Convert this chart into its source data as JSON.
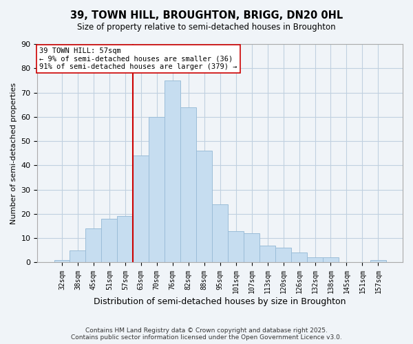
{
  "title": "39, TOWN HILL, BROUGHTON, BRIGG, DN20 0HL",
  "subtitle": "Size of property relative to semi-detached houses in Broughton",
  "xlabel": "Distribution of semi-detached houses by size in Broughton",
  "ylabel": "Number of semi-detached properties",
  "bar_labels": [
    "32sqm",
    "38sqm",
    "45sqm",
    "51sqm",
    "57sqm",
    "63sqm",
    "70sqm",
    "76sqm",
    "82sqm",
    "88sqm",
    "95sqm",
    "101sqm",
    "107sqm",
    "113sqm",
    "120sqm",
    "126sqm",
    "132sqm",
    "138sqm",
    "145sqm",
    "151sqm",
    "157sqm"
  ],
  "bar_values": [
    1,
    5,
    14,
    18,
    19,
    44,
    60,
    75,
    64,
    46,
    24,
    13,
    12,
    7,
    6,
    4,
    2,
    2,
    0,
    0,
    1
  ],
  "bar_color": "#c6ddf0",
  "bar_edge_color": "#9bbdd8",
  "vline_index": 4,
  "vline_color": "#cc0000",
  "annotation_line1": "39 TOWN HILL: 57sqm",
  "annotation_line2": "← 9% of semi-detached houses are smaller (36)",
  "annotation_line3": "91% of semi-detached houses are larger (379) →",
  "ylim": [
    0,
    90
  ],
  "yticks": [
    0,
    10,
    20,
    30,
    40,
    50,
    60,
    70,
    80,
    90
  ],
  "background_color": "#f0f4f8",
  "grid_color": "#c0d0e0",
  "footnote_line1": "Contains HM Land Registry data © Crown copyright and database right 2025.",
  "footnote_line2": "Contains public sector information licensed under the Open Government Licence v3.0."
}
